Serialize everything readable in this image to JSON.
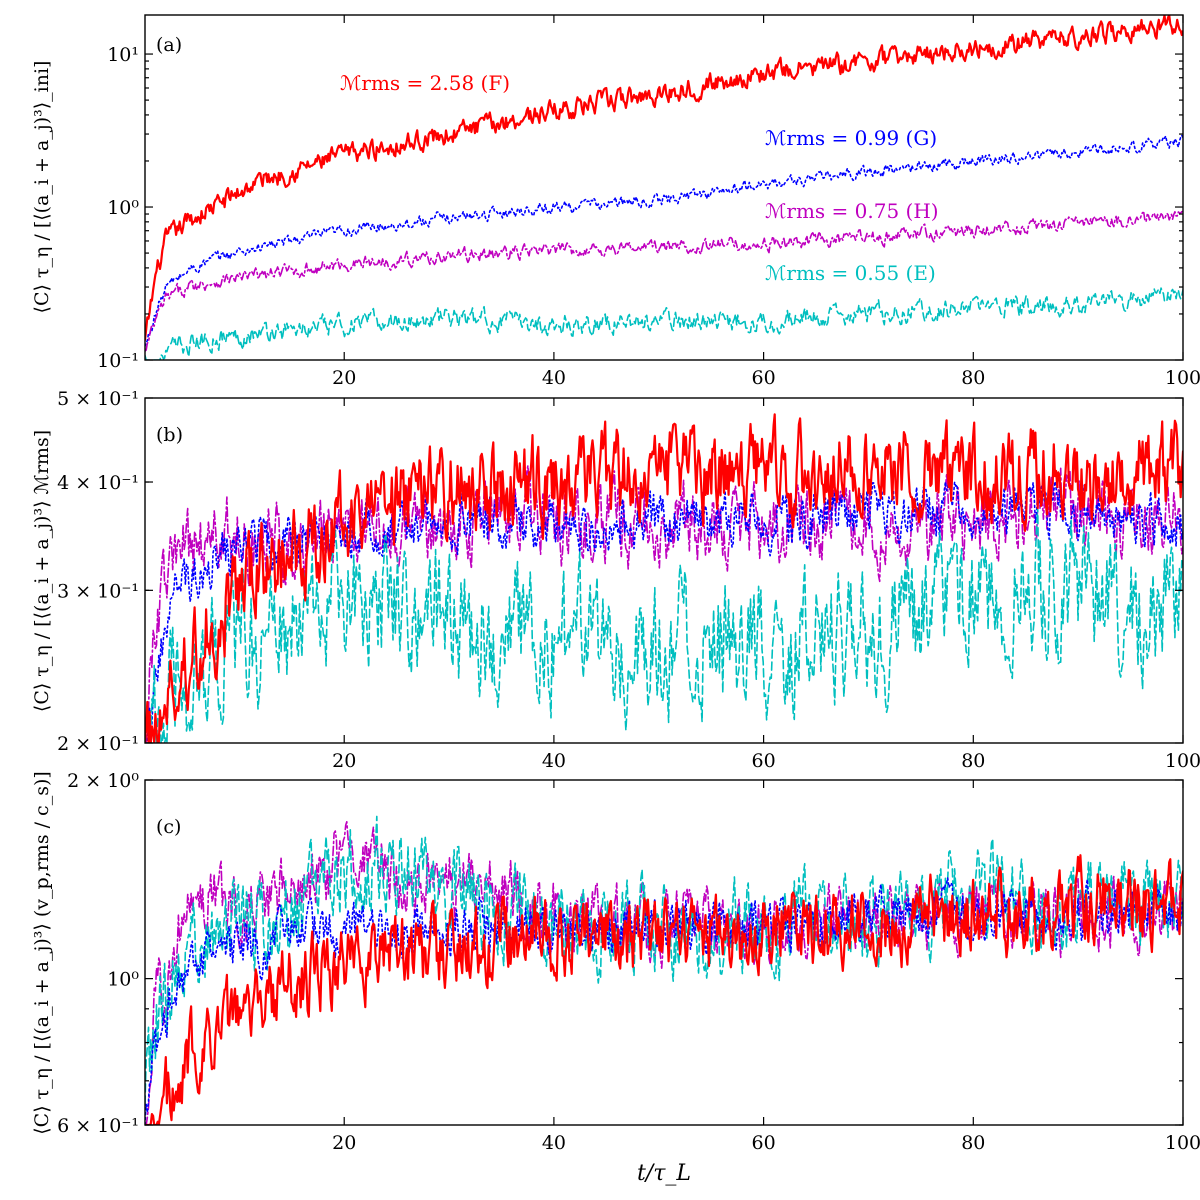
{
  "chart_data": {
    "type": "line",
    "xlabel": "t/τ_L",
    "x_range": [
      1,
      100
    ],
    "x_ticks": [
      20,
      40,
      60,
      80,
      100
    ],
    "series_styles": [
      {
        "key": "F",
        "name": "ℳrms = 2.58 (F)",
        "color": "#ff0000",
        "dash": "solid"
      },
      {
        "key": "G",
        "name": "ℳrms = 0.99 (G)",
        "color": "#0000ff",
        "dash": "dotted"
      },
      {
        "key": "H",
        "name": "ℳrms = 0.75 (H)",
        "color": "#bf00bf",
        "dash": "dashdot"
      },
      {
        "key": "E",
        "name": "ℳrms = 0.55 (E)",
        "color": "#00bfbf",
        "dash": "dashed"
      }
    ],
    "panels": [
      {
        "id": "a",
        "panel_label": "(a)",
        "yscale": "log",
        "ylim": [
          0.1,
          18
        ],
        "ylabel": "⟨C⟩ τ_η / [⟨(a_i + a_j)³⟩_ini]",
        "y_ticks": [
          {
            "value": 0.1,
            "label": "10⁻¹"
          },
          {
            "value": 1,
            "label": "10⁰"
          },
          {
            "value": 10,
            "label": "10¹"
          }
        ],
        "annotations": [
          {
            "text": "ℳrms = 2.58 (F)",
            "color": "#ff0000"
          },
          {
            "text": "ℳrms = 0.99 (G)",
            "color": "#0000ff"
          },
          {
            "text": "ℳrms = 0.75 (H)",
            "color": "#bf00bf"
          },
          {
            "text": "ℳrms = 0.55 (E)",
            "color": "#00bfbf"
          }
        ],
        "series": [
          {
            "key": "F",
            "x": [
              1,
              2,
              3,
              5,
              8,
              12,
              16,
              20,
              30,
              40,
              50,
              60,
              70,
              80,
              90,
              100
            ],
            "y": [
              0.13,
              0.35,
              0.6,
              0.8,
              1.05,
              1.5,
              1.8,
              2.2,
              3.0,
              4.3,
              5.5,
              7.5,
              9.0,
              11.0,
              13.0,
              16.0
            ],
            "noise": 0.09
          },
          {
            "key": "G",
            "x": [
              1,
              2,
              3,
              5,
              8,
              12,
              20,
              30,
              40,
              50,
              55,
              60,
              70,
              80,
              90,
              100
            ],
            "y": [
              0.12,
              0.2,
              0.3,
              0.38,
              0.47,
              0.55,
              0.7,
              0.85,
              1.0,
              1.1,
              1.25,
              1.4,
              1.7,
              2.0,
              2.3,
              2.7
            ],
            "noise": 0.05
          },
          {
            "key": "H",
            "x": [
              1,
              2,
              3,
              5,
              8,
              12,
              20,
              30,
              40,
              50,
              60,
              70,
              80,
              90,
              100
            ],
            "y": [
              0.11,
              0.18,
              0.25,
              0.3,
              0.33,
              0.36,
              0.42,
              0.48,
              0.52,
              0.55,
              0.57,
              0.63,
              0.7,
              0.78,
              0.88
            ],
            "noise": 0.06
          },
          {
            "key": "E",
            "x": [
              1,
              2,
              4,
              8,
              12,
              20,
              30,
              40,
              50,
              60,
              70,
              80,
              90,
              100
            ],
            "y": [
              0.1,
              0.1,
              0.12,
              0.14,
              0.15,
              0.17,
              0.19,
              0.17,
              0.18,
              0.18,
              0.2,
              0.22,
              0.23,
              0.27
            ],
            "noise": 0.09
          }
        ]
      },
      {
        "id": "b",
        "panel_label": "(b)",
        "yscale": "log",
        "ylim": [
          0.2,
          0.5
        ],
        "ylabel": "⟨C⟩ τ_η / [⟨(a_i + a_j)³⟩ ℳrms]",
        "y_ticks": [
          {
            "value": 0.2,
            "label": "2 × 10⁻¹"
          },
          {
            "value": 0.3,
            "label": "3 × 10⁻¹"
          },
          {
            "value": 0.4,
            "label": "4 × 10⁻¹"
          },
          {
            "value": 0.5,
            "label": "5 × 10⁻¹"
          }
        ],
        "series": [
          {
            "key": "H",
            "x": [
              1,
              2,
              4,
              8,
              12,
              20,
              30,
              40,
              50,
              60,
              70,
              80,
              90,
              100
            ],
            "y": [
              0.2,
              0.28,
              0.33,
              0.35,
              0.34,
              0.35,
              0.36,
              0.36,
              0.36,
              0.36,
              0.36,
              0.36,
              0.37,
              0.36
            ],
            "noise": 0.06
          },
          {
            "key": "G",
            "x": [
              1,
              2,
              4,
              8,
              12,
              20,
              30,
              40,
              50,
              60,
              70,
              80,
              90,
              100
            ],
            "y": [
              0.2,
              0.24,
              0.3,
              0.33,
              0.34,
              0.35,
              0.36,
              0.36,
              0.36,
              0.36,
              0.37,
              0.37,
              0.37,
              0.36
            ],
            "noise": 0.04
          },
          {
            "key": "E",
            "x": [
              1,
              3,
              6,
              10,
              15,
              20,
              25,
              30,
              40,
              50,
              60,
              70,
              80,
              90,
              100
            ],
            "y": [
              0.2,
              0.22,
              0.24,
              0.26,
              0.27,
              0.29,
              0.3,
              0.28,
              0.26,
              0.26,
              0.26,
              0.27,
              0.3,
              0.3,
              0.29
            ],
            "noise": 0.1
          },
          {
            "key": "F",
            "x": [
              1,
              3,
              6,
              10,
              15,
              20,
              25,
              30,
              40,
              50,
              60,
              70,
              80,
              90,
              100
            ],
            "y": [
              0.2,
              0.22,
              0.26,
              0.3,
              0.33,
              0.36,
              0.38,
              0.39,
              0.4,
              0.41,
              0.41,
              0.41,
              0.41,
              0.41,
              0.41
            ],
            "noise": 0.07
          }
        ]
      },
      {
        "id": "c",
        "panel_label": "(c)",
        "yscale": "log",
        "ylim": [
          0.6,
          2.0
        ],
        "ylabel": "⟨C⟩ τ_η / [⟨(a_i + a_j)³⟩ (v_p,rms / c_s)]",
        "y_ticks": [
          {
            "value": 0.6,
            "label": "6 × 10⁻¹"
          },
          {
            "value": 1,
            "label": "10⁰"
          },
          {
            "value": 2,
            "label": "2 × 10⁰"
          }
        ],
        "series": [
          {
            "key": "H",
            "x": [
              1,
              2,
              4,
              6,
              10,
              15,
              20,
              25,
              30,
              35,
              40,
              50,
              60,
              70,
              80,
              90,
              100
            ],
            "y": [
              0.6,
              0.9,
              1.15,
              1.35,
              1.3,
              1.35,
              1.5,
              1.45,
              1.4,
              1.35,
              1.25,
              1.2,
              1.2,
              1.2,
              1.25,
              1.25,
              1.25
            ],
            "noise": 0.07
          },
          {
            "key": "E",
            "x": [
              1,
              2,
              4,
              6,
              10,
              15,
              20,
              25,
              30,
              40,
              50,
              60,
              70,
              80,
              90,
              100
            ],
            "y": [
              0.65,
              0.85,
              1.05,
              1.15,
              1.2,
              1.25,
              1.45,
              1.5,
              1.35,
              1.2,
              1.2,
              1.2,
              1.25,
              1.35,
              1.3,
              1.3
            ],
            "noise": 0.09
          },
          {
            "key": "G",
            "x": [
              1,
              2,
              4,
              6,
              10,
              15,
              20,
              30,
              40,
              50,
              60,
              70,
              80,
              90,
              100
            ],
            "y": [
              0.6,
              0.8,
              1.0,
              1.05,
              1.1,
              1.15,
              1.2,
              1.2,
              1.2,
              1.2,
              1.2,
              1.25,
              1.25,
              1.25,
              1.25
            ],
            "noise": 0.05
          },
          {
            "key": "F",
            "x": [
              1,
              2,
              3,
              5,
              8,
              12,
              16,
              20,
              30,
              40,
              50,
              60,
              70,
              80,
              90,
              100
            ],
            "y": [
              0.55,
              0.6,
              0.65,
              0.75,
              0.85,
              0.95,
              1.0,
              1.05,
              1.1,
              1.15,
              1.15,
              1.2,
              1.2,
              1.25,
              1.3,
              1.3
            ],
            "noise": 0.08
          }
        ]
      }
    ]
  }
}
